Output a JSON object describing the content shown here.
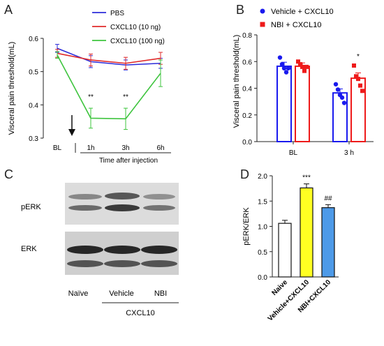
{
  "panels": {
    "A": "A",
    "B": "B",
    "C": "C",
    "D": "D"
  },
  "chart_data": [
    {
      "panel": "A",
      "type": "line",
      "ylabel": "Visceral pain threshold(mL)",
      "xlabel": "Time after injection",
      "categories": [
        "BL",
        "1h",
        "3h",
        "6h"
      ],
      "ylim": [
        0.3,
        0.6
      ],
      "yticks": [
        "0.3",
        "0.4",
        "0.5",
        "0.6"
      ],
      "legend_position": "top-right",
      "series": [
        {
          "name": "PBS",
          "color": "#2b2bd9",
          "values": [
            0.57,
            0.53,
            0.52,
            0.525
          ],
          "err": [
            0.012,
            0.018,
            0.015,
            0.015
          ]
        },
        {
          "name": "CXCL10 (10 ng)",
          "color": "#e02a2a",
          "values": [
            0.555,
            0.535,
            0.525,
            0.54
          ],
          "err": [
            0.012,
            0.018,
            0.018,
            0.018
          ]
        },
        {
          "name": "CXCL10 (100 ng)",
          "color": "#3ec43e",
          "values": [
            0.55,
            0.36,
            0.358,
            0.495
          ],
          "err": [
            0.01,
            0.03,
            0.032,
            0.04
          ]
        }
      ],
      "annotations": [
        {
          "category": "1h",
          "text": "**"
        },
        {
          "category": "3h",
          "text": "**"
        }
      ],
      "arrow_at": "injection"
    },
    {
      "panel": "B",
      "type": "bar",
      "ylabel": "Visceral pain threshold(mL)",
      "categories": [
        "BL",
        "3 h"
      ],
      "ylim": [
        0.0,
        0.8
      ],
      "yticks": [
        "0.0",
        "0.2",
        "0.4",
        "0.6",
        "0.8"
      ],
      "legend_position": "top",
      "series": [
        {
          "name": "Vehicle + CXCL10",
          "color": "#1a1aee",
          "values": [
            0.565,
            0.365
          ],
          "err": [
            0.03,
            0.03
          ],
          "points": [
            [
              0.63,
              0.58,
              0.55,
              0.52,
              0.55
            ],
            [
              0.43,
              0.39,
              0.35,
              0.33,
              0.29
            ]
          ]
        },
        {
          "name": "NBI + CXCL10",
          "color": "#ee1a1a",
          "values": [
            0.565,
            0.475
          ],
          "err": [
            0.025,
            0.04
          ],
          "points": [
            [
              0.6,
              0.58,
              0.56,
              0.53,
              0.56
            ],
            [
              0.57,
              0.49,
              0.47,
              0.42,
              0.38
            ]
          ]
        }
      ],
      "annotations": [
        {
          "category": "3 h",
          "text": "*"
        }
      ]
    },
    {
      "panel": "D",
      "type": "bar",
      "ylabel": "pERK/ERK",
      "categories": [
        "Naive",
        "Vehicle+CXCL10",
        "NBI+CXCL10"
      ],
      "colors": [
        "#ffffff",
        "#ffff22",
        "#4d9ae8"
      ],
      "values": [
        1.06,
        1.76,
        1.37
      ],
      "err": [
        0.06,
        0.08,
        0.06
      ],
      "ylim": [
        0.0,
        2.0
      ],
      "yticks": [
        "0.0",
        "0.5",
        "1.0",
        "1.5",
        "2.0"
      ],
      "annotations": [
        {
          "category": "Vehicle+CXCL10",
          "text": "***"
        },
        {
          "category": "NBI+CXCL10",
          "text": "##"
        }
      ]
    }
  ],
  "blot": {
    "rows": [
      "pERK",
      "ERK"
    ],
    "lanes": [
      "Naïve",
      "Vehicle",
      "NBI"
    ],
    "group_label": "CXCL10"
  }
}
